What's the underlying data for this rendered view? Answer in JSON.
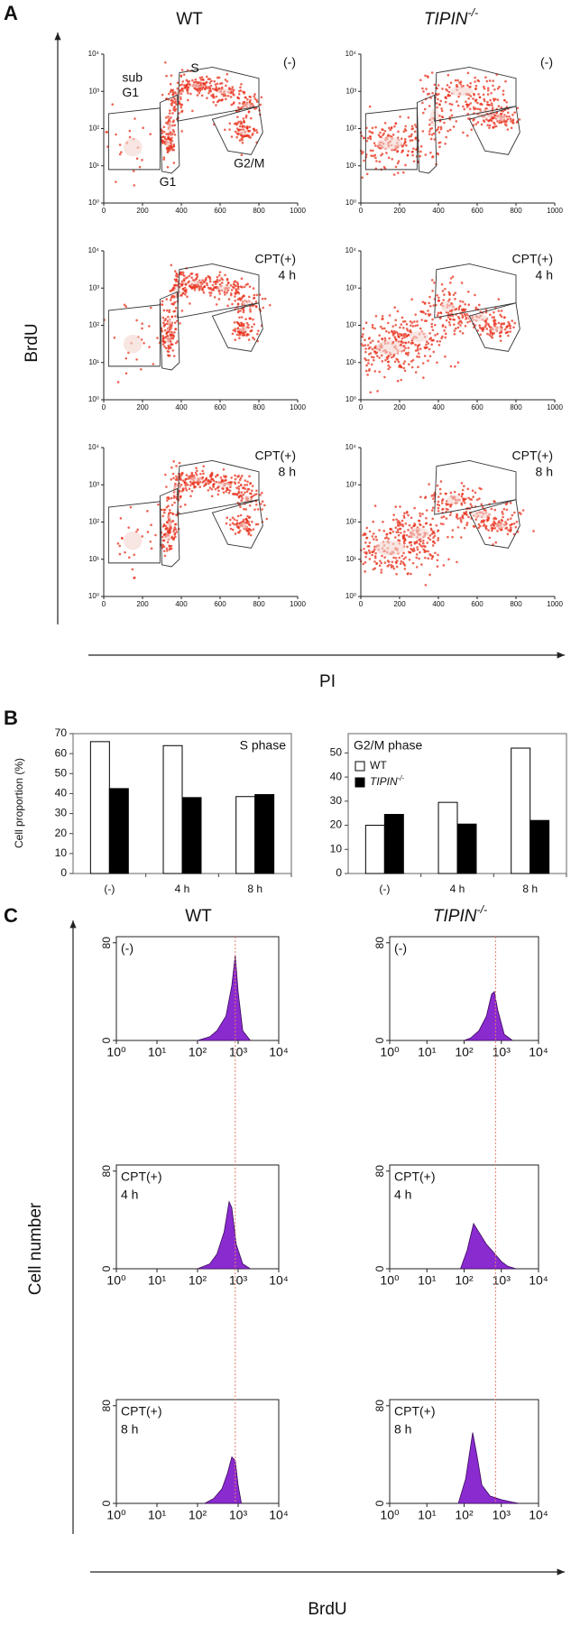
{
  "figure": {
    "panel_labels": [
      "A",
      "B",
      "C"
    ],
    "columns": [
      "WT",
      "TIPIN-/-"
    ]
  },
  "chart_data": [
    {
      "type": "scatter",
      "x_label": "PI",
      "y_label": "BrdU",
      "log_y": true,
      "color": "#e8321e",
      "xlim": [
        0,
        1000
      ],
      "xticks": [
        0,
        200,
        400,
        600,
        800,
        1000
      ],
      "ylim": [
        1,
        10000
      ],
      "yticks": [
        {
          "value": 1,
          "label": "10⁰"
        },
        {
          "value": 10,
          "label": "10¹"
        },
        {
          "value": 100,
          "label": "10²"
        },
        {
          "value": 1000,
          "label": "10³"
        },
        {
          "value": 10000,
          "label": "10⁴"
        }
      ],
      "plots": [
        {
          "column": 0,
          "annotation": [
            "(-)"
          ],
          "gate_labels": [
            "sub",
            "G1",
            "S",
            "G1",
            "G2/M"
          ]
        },
        {
          "column": 1,
          "annotation": [
            "(-)"
          ]
        },
        {
          "column": 0,
          "annotation": [
            "CPT(+)",
            "4 h"
          ]
        },
        {
          "column": 1,
          "annotation": [
            "CPT(+)",
            "4 h"
          ]
        },
        {
          "column": 0,
          "annotation": [
            "CPT(+)",
            "8 h"
          ]
        },
        {
          "column": 1,
          "annotation": [
            "CPT(+)",
            "8 h"
          ]
        }
      ]
    },
    {
      "type": "bar",
      "y_label": "Cell proportion (%)",
      "annotation": "S phase",
      "categories": [
        "(-)",
        "4 h",
        "8 h"
      ],
      "series": [
        {
          "color": "#ffffff",
          "values": [
            66,
            64,
            38.5
          ]
        },
        {
          "color": "#000000",
          "values": [
            42.5,
            38,
            39.5
          ]
        }
      ],
      "ylim": [
        0,
        70
      ],
      "yticks": [
        0,
        10,
        20,
        30,
        40,
        50,
        60,
        70
      ],
      "legend": false
    },
    {
      "type": "bar",
      "annotation": "G2/M phase",
      "categories": [
        "(-)",
        "4 h",
        "8 h"
      ],
      "series": [
        {
          "name": "WT",
          "color": "#ffffff",
          "values": [
            20,
            29.5,
            52
          ]
        },
        {
          "name": "TIPIN-/-",
          "color": "#000000",
          "values": [
            24.5,
            20.5,
            22
          ]
        }
      ],
      "ylim": [
        0,
        58
      ],
      "yticks": [
        0,
        10,
        20,
        30,
        40,
        50
      ],
      "legend": true,
      "legend_position": "upper left"
    },
    {
      "type": "area",
      "x_label": "BrdU",
      "y_label": "Cell number",
      "log_x": true,
      "color": "#8a2bd0",
      "xlim": [
        1,
        10000
      ],
      "xticks": [
        {
          "value": 1,
          "label": "10⁰"
        },
        {
          "value": 10,
          "label": "10¹"
        },
        {
          "value": 100,
          "label": "10²"
        },
        {
          "value": 1000,
          "label": "10³"
        },
        {
          "value": 10000,
          "label": "10⁴"
        }
      ],
      "ylim": [
        0,
        85
      ],
      "yticks": [
        0,
        80
      ],
      "reference_lines": [
        850,
        700
      ],
      "reference_color": "#e87a6a",
      "plots": [
        {
          "column": 0,
          "annotation": [
            "(-)"
          ],
          "x": [
            100,
            200,
            300,
            500,
            700,
            850,
            1000,
            1300,
            2000
          ],
          "values": [
            0,
            3,
            8,
            20,
            45,
            70,
            40,
            8,
            0
          ]
        },
        {
          "column": 1,
          "annotation": [
            "(-)"
          ],
          "x": [
            100,
            150,
            250,
            400,
            550,
            650,
            800,
            1200,
            2000
          ],
          "values": [
            0,
            2,
            8,
            20,
            38,
            40,
            25,
            5,
            0
          ]
        },
        {
          "column": 0,
          "annotation": [
            "CPT(+)",
            "4 h"
          ],
          "x": [
            100,
            200,
            300,
            450,
            600,
            700,
            900,
            1300,
            2000
          ],
          "values": [
            0,
            4,
            12,
            30,
            55,
            50,
            20,
            4,
            0
          ]
        },
        {
          "column": 1,
          "annotation": [
            "CPT(+)",
            "4 h"
          ],
          "x": [
            80,
            120,
            180,
            250,
            400,
            600,
            1000,
            1500,
            2500
          ],
          "values": [
            0,
            15,
            37,
            30,
            20,
            14,
            6,
            2,
            0
          ]
        },
        {
          "column": 0,
          "annotation": [
            "CPT(+)",
            "8 h"
          ],
          "x": [
            150,
            250,
            400,
            550,
            700,
            850,
            1000,
            1200
          ],
          "values": [
            0,
            4,
            12,
            25,
            38,
            35,
            15,
            0
          ]
        },
        {
          "column": 1,
          "annotation": [
            "CPT(+)",
            "8 h"
          ],
          "x": [
            70,
            110,
            170,
            220,
            300,
            500,
            1000,
            2000,
            3000
          ],
          "values": [
            0,
            20,
            58,
            40,
            15,
            6,
            3,
            1,
            0
          ]
        }
      ]
    }
  ]
}
